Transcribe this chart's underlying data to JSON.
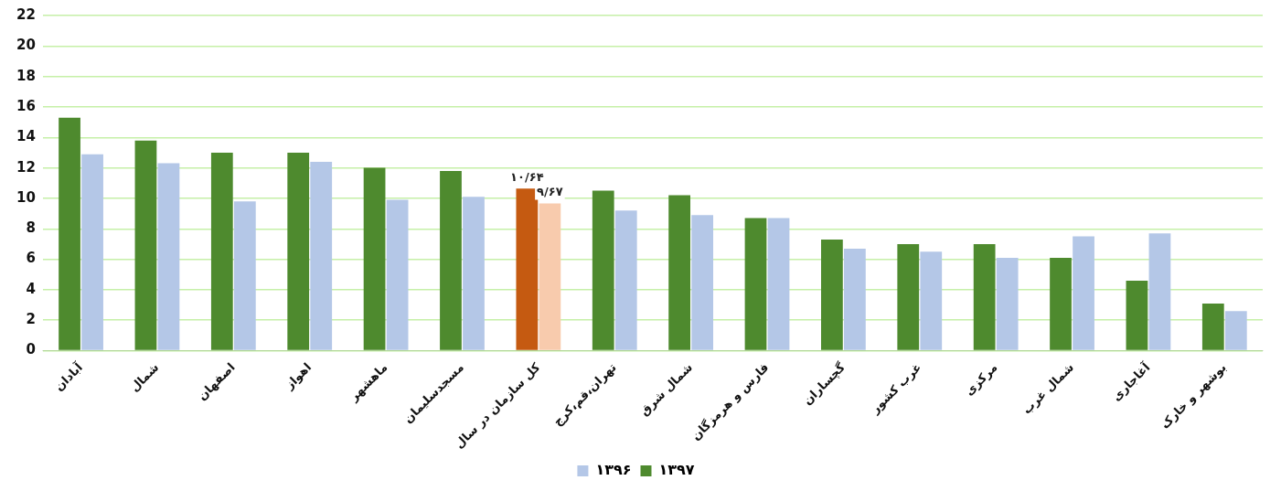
{
  "chart_data": {
    "type": "bar",
    "categories": [
      "آبادان",
      "شمال",
      "اصفهان",
      "اهواز",
      "ماهشهر",
      "مسجدسلیمان",
      "کل سازمان در سال",
      "تهران،قم،کرج",
      "شمال شرق",
      "فارس و هرمزگان",
      "گچساران",
      "غرب کشور",
      "مرکزی",
      "شمال غرب",
      "آغاجاری",
      "بوشهر و خارک"
    ],
    "series": [
      {
        "name": "۱۳۹۷",
        "color": "#4e8a2e",
        "colors": [
          "#4e8a2e",
          "#4e8a2e",
          "#4e8a2e",
          "#4e8a2e",
          "#4e8a2e",
          "#4e8a2e",
          "#c55a11",
          "#4e8a2e",
          "#4e8a2e",
          "#4e8a2e",
          "#4e8a2e",
          "#4e8a2e",
          "#4e8a2e",
          "#4e8a2e",
          "#4e8a2e",
          "#4e8a2e"
        ],
        "values": [
          15.3,
          13.8,
          13.0,
          13.0,
          12.0,
          11.8,
          10.64,
          10.5,
          10.2,
          8.7,
          7.3,
          7.0,
          7.0,
          6.1,
          4.6,
          3.1
        ],
        "value_labels": [
          null,
          null,
          null,
          null,
          null,
          null,
          "۱۰/۶۴",
          null,
          null,
          null,
          null,
          null,
          null,
          null,
          null,
          null
        ]
      },
      {
        "name": "۱۳۹۶",
        "color": "#b4c7e7",
        "colors": [
          "#b4c7e7",
          "#b4c7e7",
          "#b4c7e7",
          "#b4c7e7",
          "#b4c7e7",
          "#b4c7e7",
          "#f8cbad",
          "#b4c7e7",
          "#b4c7e7",
          "#b4c7e7",
          "#b4c7e7",
          "#b4c7e7",
          "#b4c7e7",
          "#b4c7e7",
          "#b4c7e7",
          "#b4c7e7"
        ],
        "values": [
          12.9,
          12.3,
          9.8,
          12.4,
          9.9,
          10.1,
          9.67,
          9.2,
          8.9,
          8.7,
          6.7,
          6.5,
          6.1,
          7.5,
          7.7,
          2.6
        ],
        "value_labels": [
          null,
          null,
          null,
          null,
          null,
          null,
          "۹/۶۷",
          null,
          null,
          null,
          null,
          null,
          null,
          null,
          null,
          null
        ]
      }
    ],
    "ylim": [
      0,
      22
    ],
    "yticks": [
      0,
      2,
      4,
      6,
      8,
      10,
      12,
      14,
      16,
      18,
      20,
      22
    ],
    "grid": "y",
    "legend": "bottom"
  }
}
